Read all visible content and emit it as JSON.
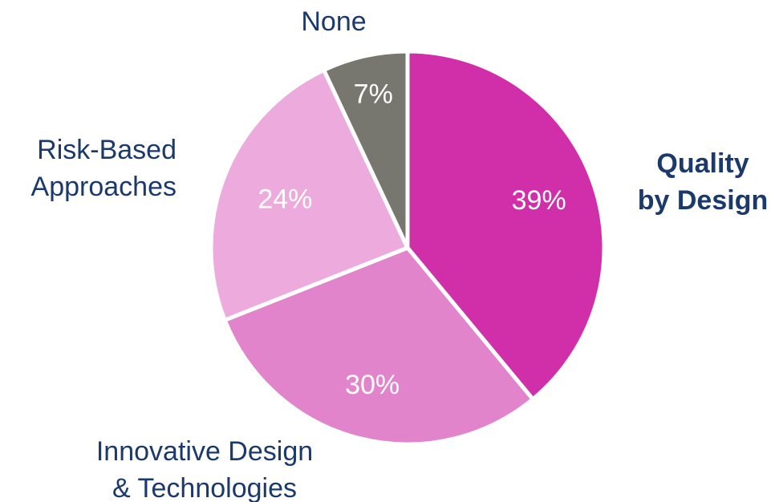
{
  "chart_data": {
    "type": "pie",
    "title": "",
    "start_angle_deg": 0,
    "direction": "clockwise",
    "slices": [
      {
        "label_lines": [
          "Quality",
          "by Design"
        ],
        "value": 39,
        "value_label": "39%",
        "color": "#d12fa9",
        "emphasis": true
      },
      {
        "label_lines": [
          "Innovative Design",
          "& Technologies"
        ],
        "value": 30,
        "value_label": "30%",
        "color": "#e284cb",
        "emphasis": false
      },
      {
        "label_lines": [
          "Risk-Based",
          "Approaches"
        ],
        "value": 24,
        "value_label": "24%",
        "color": "#edaadc",
        "emphasis": false
      },
      {
        "label_lines": [
          "None"
        ],
        "value": 7,
        "value_label": "7%",
        "color": "#78776f",
        "emphasis": false
      }
    ]
  }
}
